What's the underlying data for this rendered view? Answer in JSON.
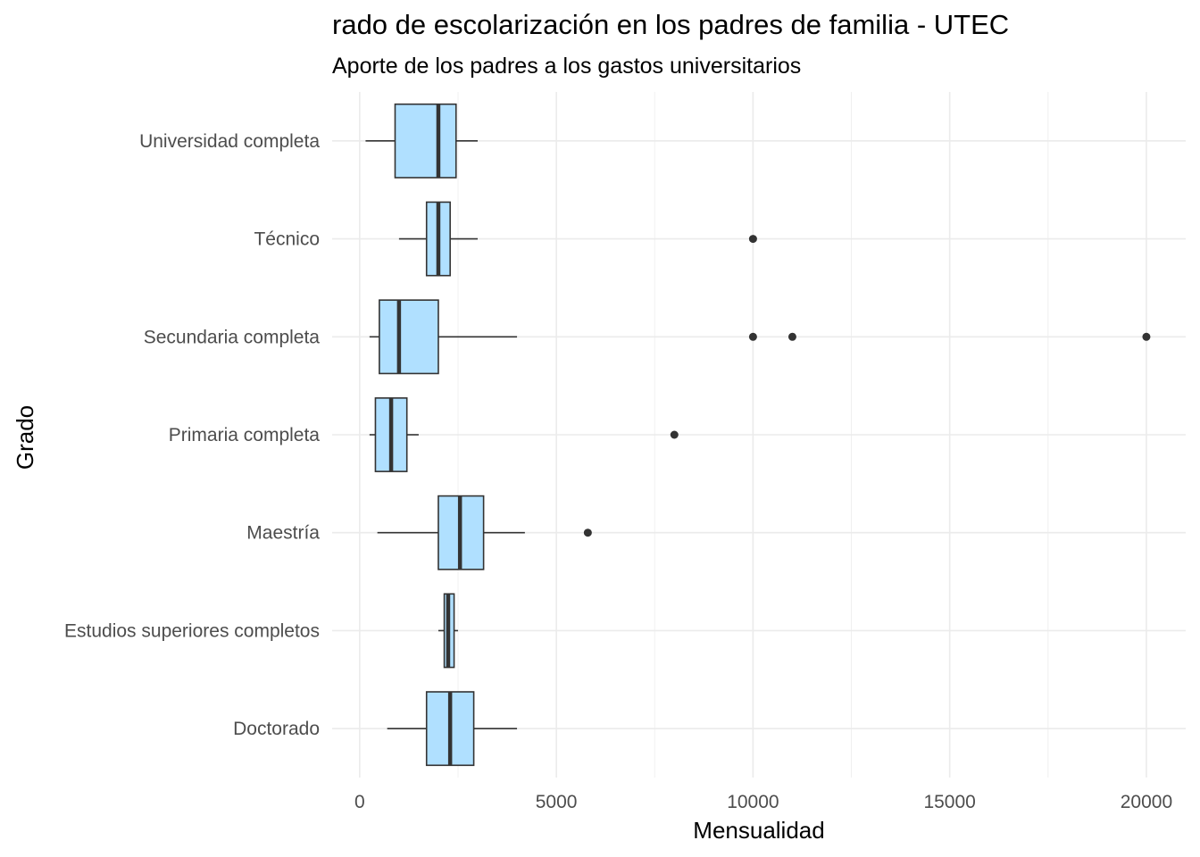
{
  "chart_data": {
    "type": "boxplot",
    "title": "rado de escolarización en los padres de familia - UTEC",
    "subtitle": "Aporte de los padres a los gastos universitarios",
    "xlabel": "Mensualidad",
    "ylabel": "Grado",
    "xlim": [
      -700,
      21000
    ],
    "x_ticks": [
      0,
      5000,
      10000,
      15000,
      20000
    ],
    "grid": true,
    "box_fill": "#b0e0ff",
    "box_stroke": "#333333",
    "series": [
      {
        "category": "Universidad completa",
        "whisker_low": 150,
        "q1": 900,
        "median": 2000,
        "q3": 2450,
        "whisker_high": 3000,
        "outliers": []
      },
      {
        "category": "Técnico",
        "whisker_low": 1000,
        "q1": 1700,
        "median": 2000,
        "q3": 2300,
        "whisker_high": 3000,
        "outliers": [
          10000
        ]
      },
      {
        "category": "Secundaria completa",
        "whisker_low": 250,
        "q1": 500,
        "median": 1000,
        "q3": 2000,
        "whisker_high": 4000,
        "outliers": [
          10000,
          11000,
          20000
        ]
      },
      {
        "category": "Primaria completa",
        "whisker_low": 250,
        "q1": 400,
        "median": 800,
        "q3": 1200,
        "whisker_high": 1500,
        "outliers": [
          8000
        ]
      },
      {
        "category": "Maestría",
        "whisker_low": 450,
        "q1": 2000,
        "median": 2550,
        "q3": 3150,
        "whisker_high": 4200,
        "outliers": [
          5800
        ]
      },
      {
        "category": "Estudios superiores completos",
        "whisker_low": 2000,
        "q1": 2150,
        "median": 2250,
        "q3": 2400,
        "whisker_high": 2500,
        "outliers": []
      },
      {
        "category": "Doctorado",
        "whisker_low": 700,
        "q1": 1700,
        "median": 2300,
        "q3": 2900,
        "whisker_high": 4000,
        "outliers": []
      }
    ]
  }
}
